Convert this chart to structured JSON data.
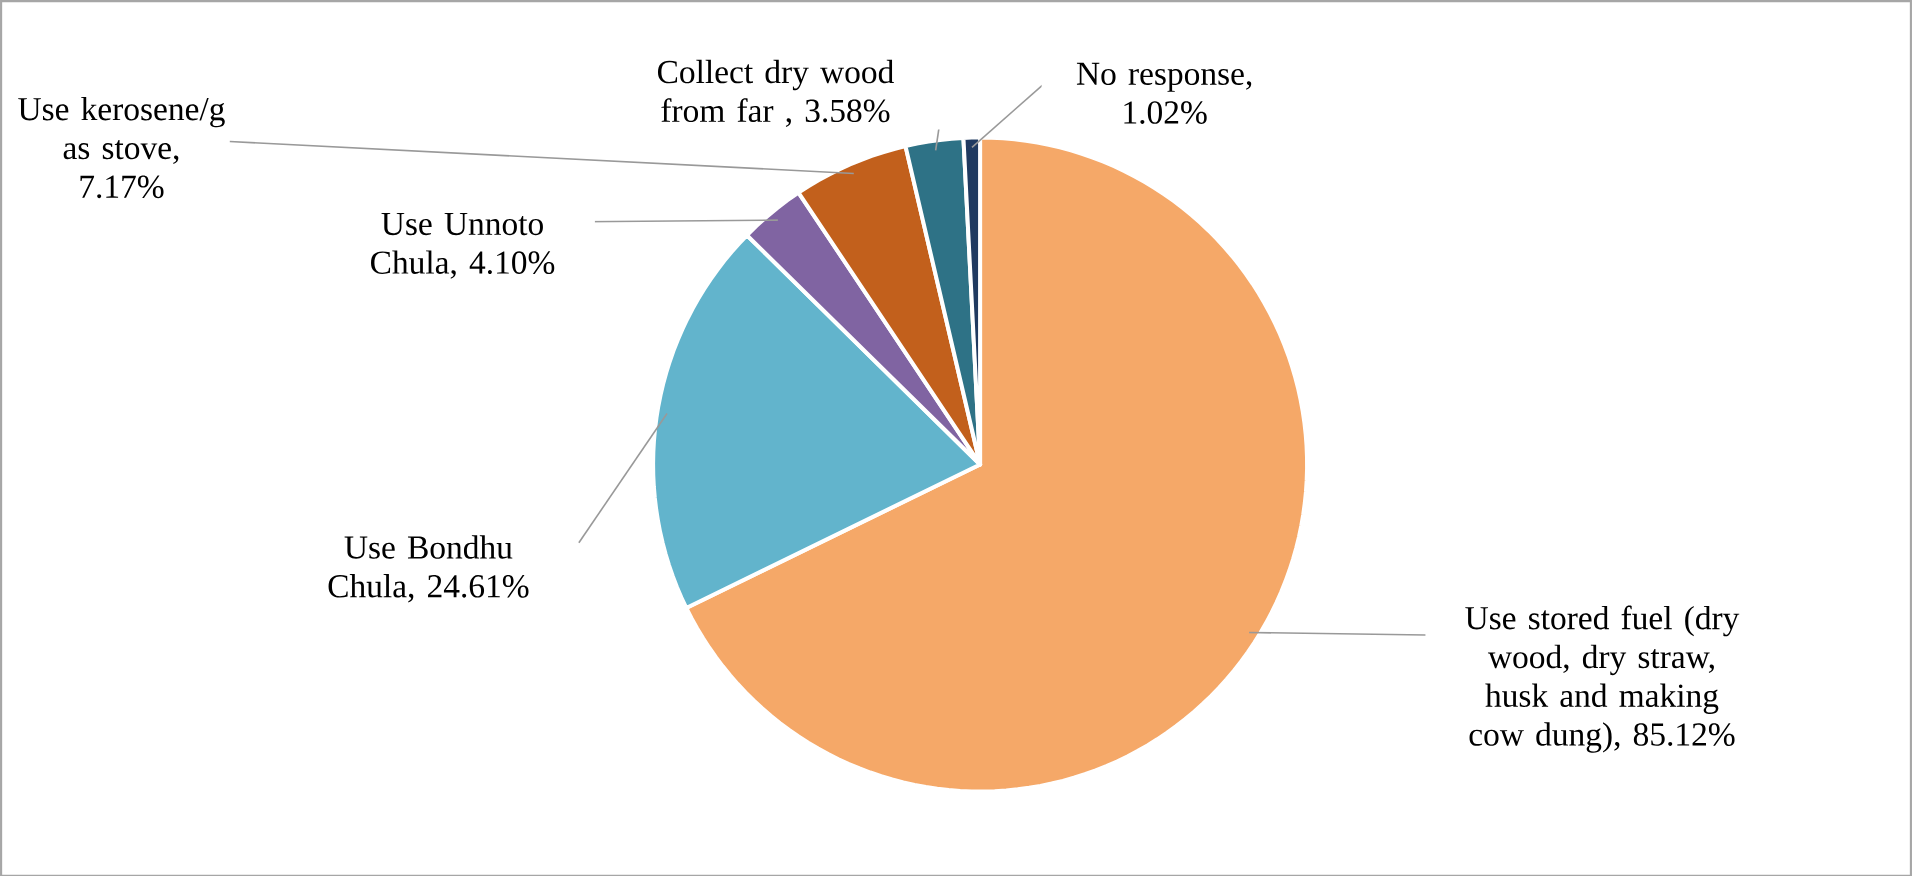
{
  "chart_data": {
    "type": "pie",
    "categories": [
      "Use stored fuel (dry wood, dry straw, husk and making cow dung), 85.12%",
      "Use Bondhu Chula, 24.61%",
      "Use Unnoto Chula, 4.10%",
      "Use kerosene/g as stove, 7.17%",
      "Collect dry wood from far , 3.58%",
      "No response, 1.02%"
    ],
    "values": [
      85.12,
      24.61,
      4.1,
      7.17,
      3.58,
      1.02
    ],
    "colors": [
      "#f5a868",
      "#62b4cc",
      "#8064a2",
      "#c2601c",
      "#2e7286",
      "#203a60"
    ]
  }
}
